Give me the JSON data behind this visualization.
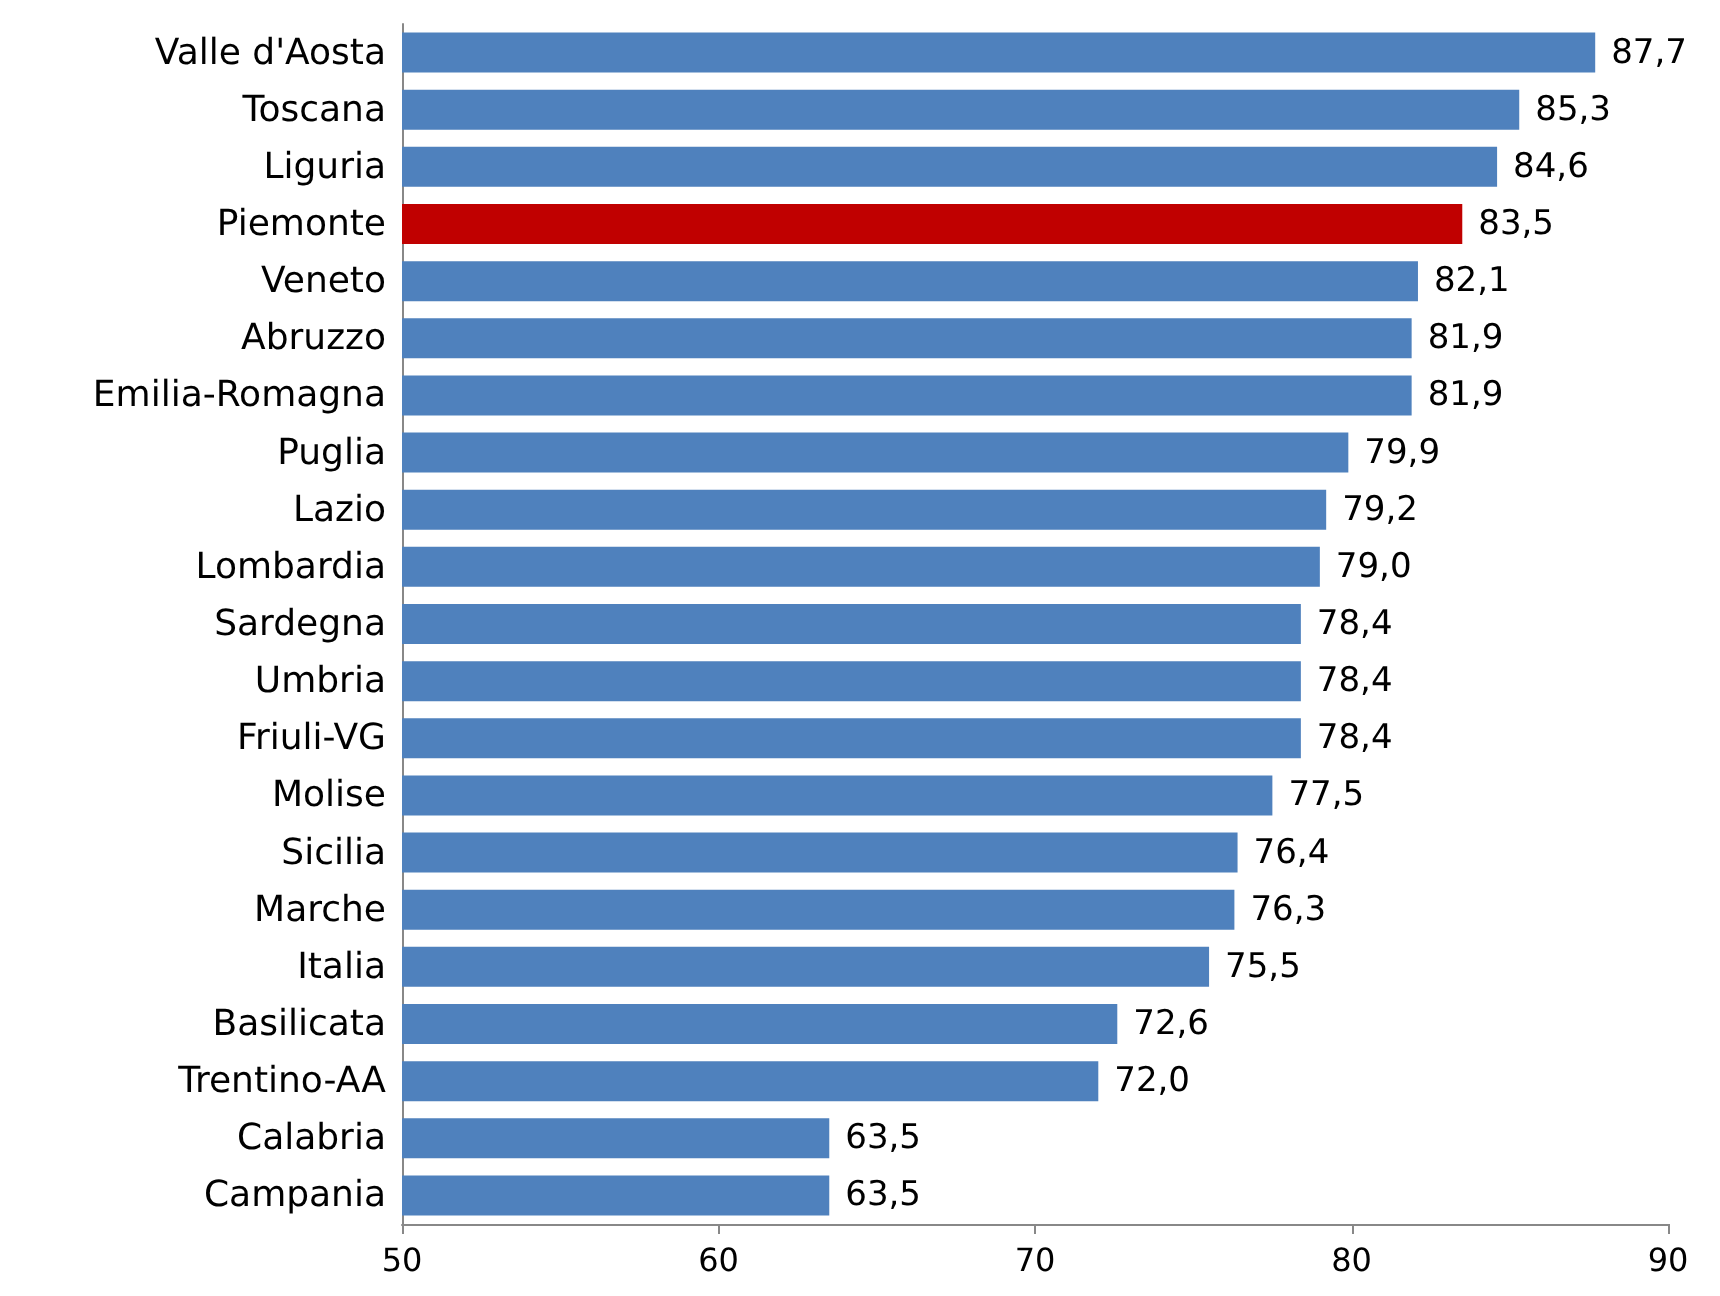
{
  "chart_data": {
    "type": "bar",
    "orientation": "horizontal",
    "categories": [
      "Valle d'Aosta",
      "Toscana",
      "Liguria",
      "Piemonte",
      "Veneto",
      "Abruzzo",
      "Emilia-Romagna",
      "Puglia",
      "Lazio",
      "Lombardia",
      "Sardegna",
      "Umbria",
      "Friuli-VG",
      "Molise",
      "Sicilia",
      "Marche",
      "Italia",
      "Basilicata",
      "Trentino-AA",
      "Calabria",
      "Campania"
    ],
    "values": [
      87.7,
      85.3,
      84.6,
      83.5,
      82.1,
      81.9,
      81.9,
      79.9,
      79.2,
      79.0,
      78.4,
      78.4,
      78.4,
      77.5,
      76.4,
      76.3,
      75.5,
      72.6,
      72.0,
      63.5,
      63.5
    ],
    "value_labels": [
      "87,7",
      "85,3",
      "84,6",
      "83,5",
      "82,1",
      "81,9",
      "81,9",
      "79,9",
      "79,2",
      "79,0",
      "78,4",
      "78,4",
      "78,4",
      "77,5",
      "76,4",
      "76,3",
      "75,5",
      "72,6",
      "72,0",
      "63,5",
      "63,5"
    ],
    "colors": [
      "#4f81bd",
      "#4f81bd",
      "#4f81bd",
      "#c00000",
      "#4f81bd",
      "#4f81bd",
      "#4f81bd",
      "#4f81bd",
      "#4f81bd",
      "#4f81bd",
      "#4f81bd",
      "#4f81bd",
      "#4f81bd",
      "#4f81bd",
      "#4f81bd",
      "#4f81bd",
      "#4f81bd",
      "#4f81bd",
      "#4f81bd",
      "#4f81bd",
      "#4f81bd"
    ],
    "xlim": [
      50,
      90
    ],
    "xticks": [
      50,
      60,
      70,
      80,
      90
    ],
    "grid": false
  }
}
